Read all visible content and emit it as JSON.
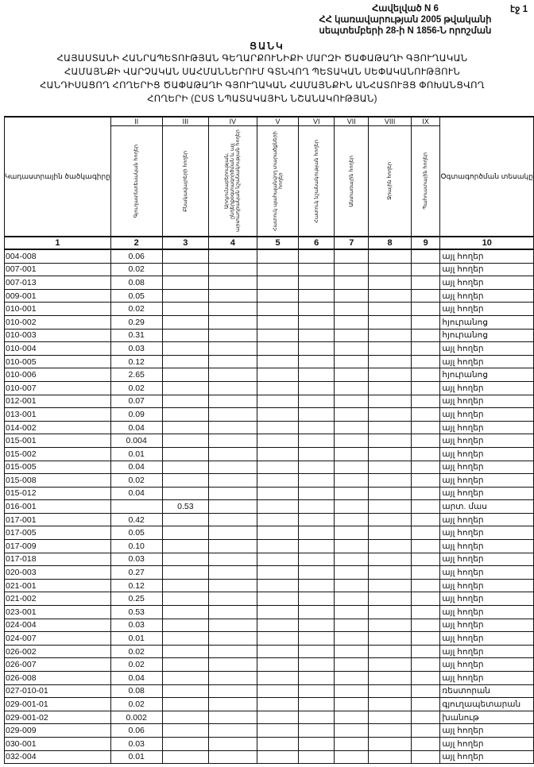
{
  "header": {
    "annex_lines": [
      "Հավելված N 6",
      "ՀՀ կառավարության 2005 թվականի",
      "սեպտեմբերի 28-ի N 1856-Ն որոշման"
    ],
    "page": "էջ 1",
    "title": "ՑԱՆԿ",
    "subtitle_lines": [
      "ՀԱՅԱՍՏԱՆԻ ՀԱՆՐԱՊԵՏՈՒԹՅԱՆ ԳԵՂԱՐՔՈՒՆԻՔԻ ՄԱՐԶԻ ԾԱՓԱԹԱՂԻ ԳՅՈՒՂԱԿԱՆ",
      "ՀԱՄԱՅՆՔԻ ՎԱՐՉԱԿԱՆ ՍԱՀՄԱՆՆԵՐՈՒՄ ԳՏՆՎՈՂ ՊԵՏԱԿԱՆ ՍԵՓԱԿԱՆՈՒԹՅՈՒՆ",
      "ՀԱՆԴԻՍԱՑՈՂ ՀՈՂԵՐԻՑ ԾԱՓԱԹԱՂԻ ԳՅՈՒՂԱԿԱՆ ՀԱՄԱՅՆՔԻՆ ԱՆՀԱՏՈՒՅՑ ՓՈԽԱՆՑՎՈՂ",
      "ՀՈՂԵՐԻ (ԸՍՏ ՆՊԱՏԱԿԱՅԻՆ ՆՇԱՆԱԿՈՒԹՅԱՆ)"
    ]
  },
  "table": {
    "roman": [
      "",
      "II",
      "III",
      "IV",
      "V",
      "VI",
      "VII",
      "VIII",
      "IX",
      ""
    ],
    "headers": [
      "Կադաստրային ծածկագիրը",
      "Գյուղատնտեսական հողեր",
      "Բնակավայրերի հողեր",
      "Արդյունաբերության, ընդերքօգտագործման և այլ արտադրական նշանակության հողեր",
      "Հատուկ պահպանվող տարածքների հողեր",
      "Հատուկ նշանակության հողեր",
      "Անտառային հողեր",
      "Ջրային հողեր",
      "Պահուստային հողեր",
      "Օգտագործման տեսակը"
    ],
    "numbers": [
      "1",
      "2",
      "3",
      "4",
      "5",
      "6",
      "7",
      "8",
      "9",
      "10"
    ],
    "rows": [
      {
        "code": "004-008",
        "c2": "0.06",
        "c3": "",
        "use": "այլ հողեր"
      },
      {
        "code": "007-001",
        "c2": "0.02",
        "c3": "",
        "use": "այլ հողեր"
      },
      {
        "code": "007-013",
        "c2": "0.08",
        "c3": "",
        "use": "այլ հողեր"
      },
      {
        "code": "009-001",
        "c2": "0.05",
        "c3": "",
        "use": "այլ հողեր"
      },
      {
        "code": "010-001",
        "c2": "0.02",
        "c3": "",
        "use": "այլ հողեր"
      },
      {
        "code": "010-002",
        "c2": "0.29",
        "c3": "",
        "use": "հյուրանոց"
      },
      {
        "code": "010-003",
        "c2": "0.31",
        "c3": "",
        "use": "հյուրանոց"
      },
      {
        "code": "010-004",
        "c2": "0.03",
        "c3": "",
        "use": "այլ հողեր"
      },
      {
        "code": "010-005",
        "c2": "0.12",
        "c3": "",
        "use": "այլ հողեր"
      },
      {
        "code": "010-006",
        "c2": "2.65",
        "c3": "",
        "use": "հյուրանոց"
      },
      {
        "code": "010-007",
        "c2": "0.02",
        "c3": "",
        "use": "այլ հողեր"
      },
      {
        "code": "012-001",
        "c2": "0.07",
        "c3": "",
        "use": "այլ հողեր"
      },
      {
        "code": "013-001",
        "c2": "0.09",
        "c3": "",
        "use": "այլ հողեր"
      },
      {
        "code": "014-002",
        "c2": "0.04",
        "c3": "",
        "use": "այլ հողեր"
      },
      {
        "code": "015-001",
        "c2": "0.004",
        "c3": "",
        "use": "այլ հողեր"
      },
      {
        "code": "015-002",
        "c2": "0.01",
        "c3": "",
        "use": "այլ հողեր"
      },
      {
        "code": "015-005",
        "c2": "0.04",
        "c3": "",
        "use": "այլ հողեր"
      },
      {
        "code": "015-008",
        "c2": "0.02",
        "c3": "",
        "use": "այլ հողեր"
      },
      {
        "code": "015-012",
        "c2": "0.04",
        "c3": "",
        "use": "այլ հողեր"
      },
      {
        "code": "016-001",
        "c2": "",
        "c3": "0.53",
        "use": "արտ. մաս"
      },
      {
        "code": "017-001",
        "c2": "0.42",
        "c3": "",
        "use": "այլ հողեր"
      },
      {
        "code": "017-005",
        "c2": "0.05",
        "c3": "",
        "use": "այլ հողեր"
      },
      {
        "code": "017-009",
        "c2": "0.10",
        "c3": "",
        "use": "այլ հողեր"
      },
      {
        "code": "017-018",
        "c2": "0.03",
        "c3": "",
        "use": "այլ հողեր"
      },
      {
        "code": "020-003",
        "c2": "0.27",
        "c3": "",
        "use": "այլ հողեր"
      },
      {
        "code": "021-001",
        "c2": "0.12",
        "c3": "",
        "use": "այլ հողեր"
      },
      {
        "code": "021-002",
        "c2": "0.25",
        "c3": "",
        "use": "այլ հողեր"
      },
      {
        "code": "023-001",
        "c2": "0.53",
        "c3": "",
        "use": "այլ հողեր"
      },
      {
        "code": "024-004",
        "c2": "0.03",
        "c3": "",
        "use": "այլ հողեր"
      },
      {
        "code": "024-007",
        "c2": "0.01",
        "c3": "",
        "use": "այլ հողեր"
      },
      {
        "code": "026-002",
        "c2": "0.02",
        "c3": "",
        "use": "այլ հողեր"
      },
      {
        "code": "026-007",
        "c2": "0.02",
        "c3": "",
        "use": "այլ հողեր"
      },
      {
        "code": "026-008",
        "c2": "0.04",
        "c3": "",
        "use": "այլ հողեր"
      },
      {
        "code": "027-010-01",
        "c2": "0.08",
        "c3": "",
        "use": "ռեստորան"
      },
      {
        "code": "029-001-01",
        "c2": "0.02",
        "c3": "",
        "use": "գյուղապետարան"
      },
      {
        "code": "029-001-02",
        "c2": "0.002",
        "c3": "",
        "use": "խանութ"
      },
      {
        "code": "029-009",
        "c2": "0.06",
        "c3": "",
        "use": "այլ հողեր"
      },
      {
        "code": "030-001",
        "c2": "0.03",
        "c3": "",
        "use": "այլ հողեր"
      },
      {
        "code": "032-004",
        "c2": "0.01",
        "c3": "",
        "use": "այլ հողեր"
      }
    ]
  }
}
